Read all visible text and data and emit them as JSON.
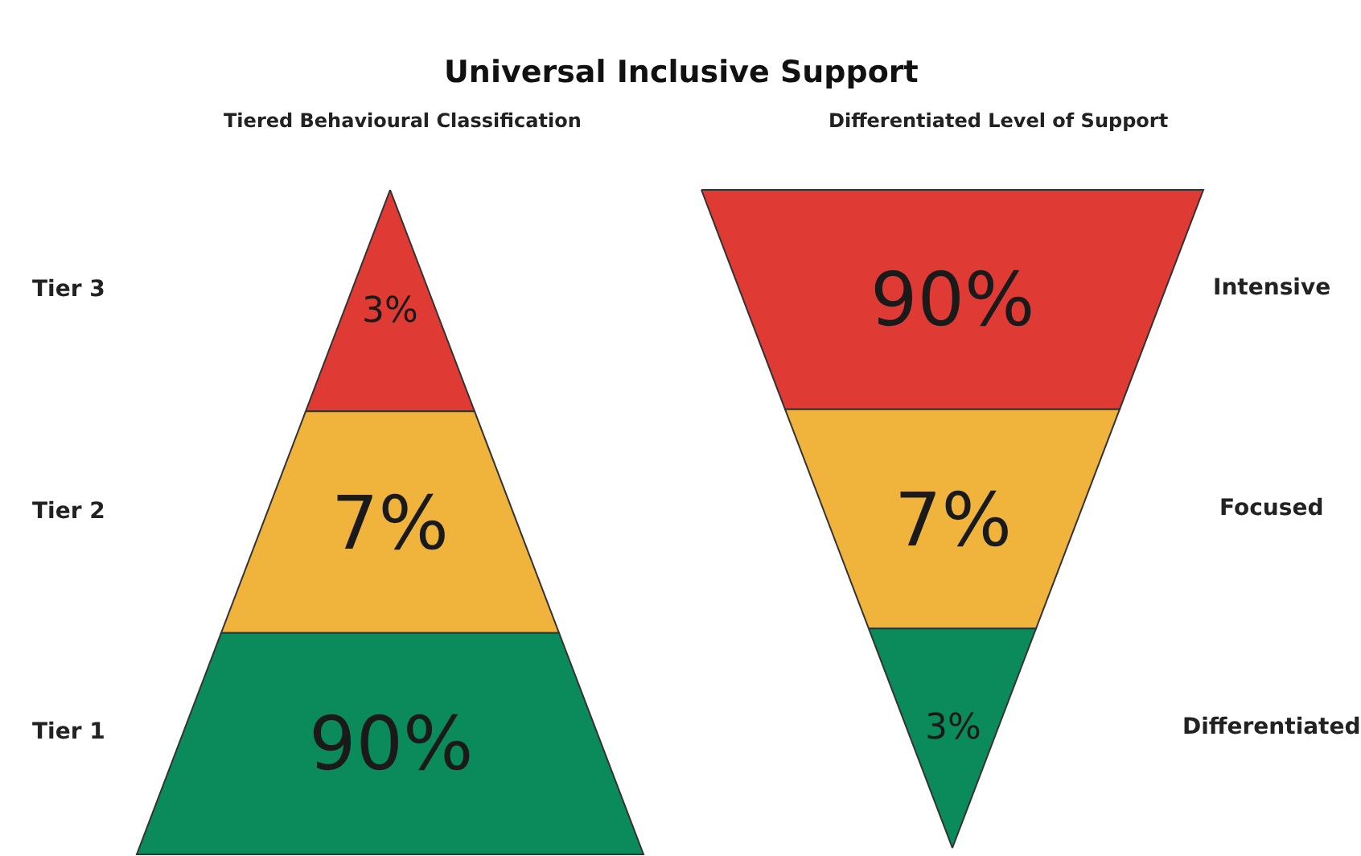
{
  "chart_data": [
    {
      "type": "other",
      "title": "Universal Inclusive Support",
      "subtitle": "Tiered Behavioural Classification",
      "categories": [
        "Tier 3",
        "Tier 2",
        "Tier 1"
      ],
      "values": [
        3,
        7,
        90
      ],
      "value_labels": [
        "3%",
        "7%",
        "90%"
      ],
      "colors": [
        "#e03a35",
        "#f0b43c",
        "#0b8a5c"
      ]
    },
    {
      "type": "other",
      "subtitle": "Differentiated Level of Support",
      "categories": [
        "Intensive",
        "Focused",
        "Differentiated"
      ],
      "values": [
        90,
        7,
        3
      ],
      "value_labels": [
        "90%",
        "7%",
        "3%"
      ],
      "colors": [
        "#e03a35",
        "#f0b43c",
        "#0b8a5c"
      ]
    }
  ]
}
